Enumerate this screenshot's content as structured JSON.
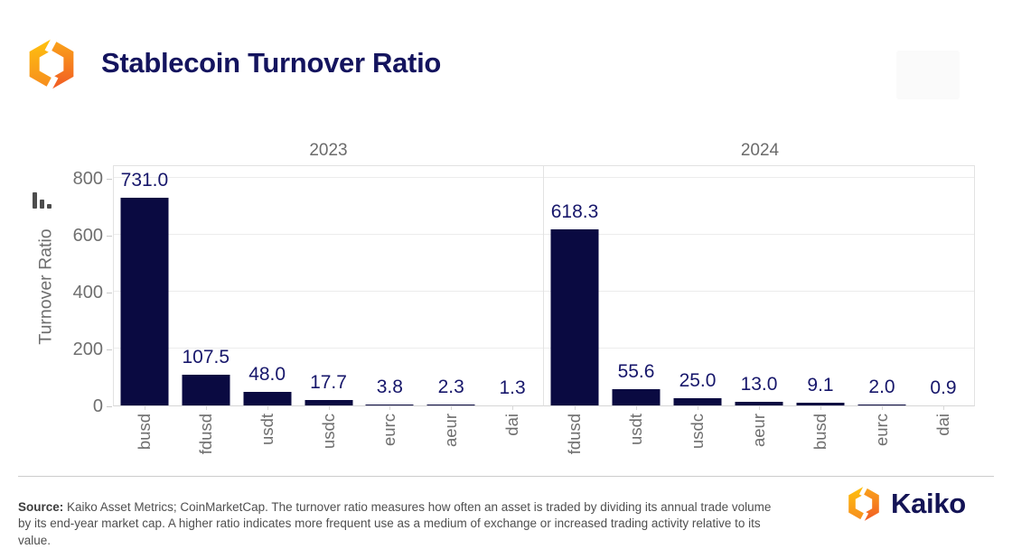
{
  "header": {
    "title": "Stablecoin Turnover Ratio"
  },
  "branding": {
    "logo_icon": "kaiko-logo-icon",
    "navy": "#14145E",
    "orange_light": "#FFC20E",
    "orange_mid": "#F68B1F",
    "orange_deep": "#F15A24"
  },
  "chart_data": {
    "type": "bar",
    "title": "Stablecoin Turnover Ratio",
    "xlabel": "",
    "ylabel": "Turnover Ratio",
    "ylim": [
      0,
      800
    ],
    "yticks": [
      0,
      200,
      400,
      600,
      800
    ],
    "grid": true,
    "bar_color": "#0A0A41",
    "value_label_color": "#17176B",
    "faceted_by": "year",
    "panels": [
      {
        "label": "2023",
        "categories": [
          "busd",
          "fdusd",
          "usdt",
          "usdc",
          "eurc",
          "aeur",
          "dai"
        ],
        "values": [
          731.0,
          107.5,
          48.0,
          17.7,
          3.8,
          2.3,
          1.3
        ]
      },
      {
        "label": "2024",
        "categories": [
          "fdusd",
          "usdt",
          "usdc",
          "aeur",
          "busd",
          "eurc",
          "dai"
        ],
        "values": [
          618.3,
          55.6,
          25.0,
          13.0,
          9.1,
          2.0,
          0.9
        ]
      }
    ]
  },
  "footer": {
    "source_label": "Source:",
    "source_text": "Kaiko Asset Metrics; CoinMarketCap. The turnover ratio measures how often an asset is traded by dividing its annual trade volume by its end-year market cap. A higher ratio indicates more frequent use as a medium of exchange or increased trading activity relative to its value.",
    "wordmark": "Kaiko"
  }
}
